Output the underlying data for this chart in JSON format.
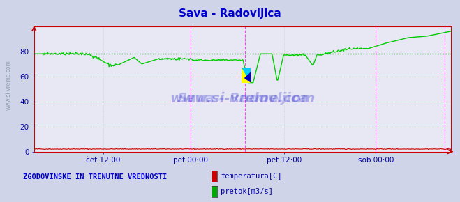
{
  "title": "Sava - Radovljica",
  "title_color": "#0000cc",
  "bg_color": "#d0d4e8",
  "plot_bg_color": "#e8e8f4",
  "grid_color_h": "#ffaaaa",
  "grid_color_v": "#cccccc",
  "xticklabels": [
    "čet 12:00",
    "pet 00:00",
    "pet 12:00",
    "sob 00:00"
  ],
  "xtick_positions": [
    0.165,
    0.375,
    0.6,
    0.82
  ],
  "yticks": [
    0,
    20,
    40,
    60,
    80
  ],
  "ylim": [
    0,
    100
  ],
  "xlim": [
    0,
    1
  ],
  "temp_color": "#cc0000",
  "flow_color": "#00cc00",
  "avg_color": "#009900",
  "legend_label1": "temperatura[C]",
  "legend_label2": "pretok[m3/s]",
  "legend_color1": "#cc0000",
  "legend_color2": "#00aa00",
  "bottom_label": "ZGODOVINSKE IN TRENUTNE VREDNOSTI",
  "bottom_label_color": "#0000cc",
  "vline_color": "#ff44ff",
  "vline_positions": [
    0.375,
    0.505,
    0.82,
    0.985
  ],
  "axis_color": "#cc0000",
  "tick_label_color": "#0000aa",
  "arrow_color": "#cc0000",
  "side_text_color": "#8899aa"
}
